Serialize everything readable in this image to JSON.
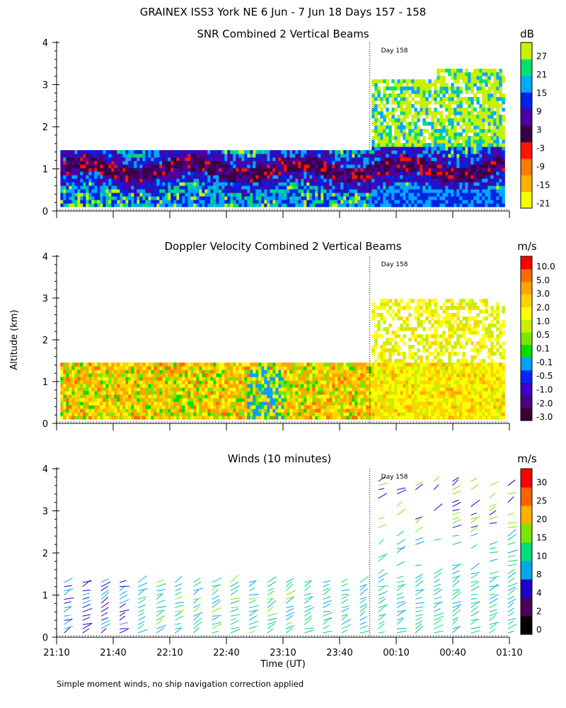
{
  "figure_title": "GRAINEX ISS3 York NE   6 Jun -  7 Jun 18 Days 157 - 158",
  "footnote": "Simple moment winds, no ship navigation correction applied",
  "shared": {
    "ylabel": "Altitude (km)",
    "xlabel": "Time (UT)",
    "x_ticks": [
      "21:10",
      "21:40",
      "22:10",
      "22:40",
      "23:10",
      "23:40",
      "00:10",
      "00:40",
      "01:10"
    ],
    "day_marker_label": "Day 158"
  },
  "chart_data": [
    {
      "type": "heatmap",
      "title": "SNR Combined 2 Vertical Beams",
      "ylim": [
        0,
        4
      ],
      "y_ticks": [
        "0",
        "1",
        "2",
        "3",
        "4"
      ],
      "colorbar_unit": "dB",
      "colorbar_labels": [
        "27",
        "21",
        "15",
        "9",
        "3",
        "-3",
        "-9",
        "-15",
        "-21"
      ],
      "colors": [
        "#f5ff00",
        "#ffb000",
        "#ff7a00",
        "#ff1400",
        "#3a0046",
        "#4c00a0",
        "#0022e6",
        "#00a8ff",
        "#00e070",
        "#c8f000"
      ],
      "description_bands": [
        {
          "from_time": "21:10",
          "to_time": "23:55",
          "bottom_km": 0.1,
          "top_km": 1.4
        },
        {
          "from_time": "23:55",
          "to_time": "01:05",
          "bottom_km": 0.1,
          "top_km": 3.3
        }
      ]
    },
    {
      "type": "heatmap",
      "title": "Doppler Velocity Combined 2 Vertical Beams",
      "ylim": [
        0,
        4
      ],
      "y_ticks": [
        "0",
        "1",
        "2",
        "3",
        "4"
      ],
      "colorbar_unit": "m/s",
      "colorbar_labels": [
        "10.0",
        "5.0",
        "3.0",
        "2.0",
        "1.0",
        "0.5",
        "0.1",
        "-0.1",
        "-0.5",
        "-1.0",
        "-2.0",
        "-3.0"
      ],
      "colors": [
        "#3a0030",
        "#4b0082",
        "#3c00c8",
        "#0028f0",
        "#00a0ff",
        "#00dc00",
        "#78e600",
        "#c8f000",
        "#ffff00",
        "#ffd200",
        "#ffa500",
        "#ff6a00",
        "#ff0000"
      ]
    },
    {
      "type": "wind_barbs",
      "title": "Winds (10 minutes)",
      "ylim": [
        0,
        4
      ],
      "y_ticks": [
        "0",
        "1",
        "2",
        "3",
        "4"
      ],
      "colorbar_unit": "m/s",
      "colorbar_labels": [
        "30",
        "25",
        "20",
        "15",
        "10",
        "8",
        "4",
        "2",
        "0"
      ],
      "colors": [
        "#000000",
        "#4b005a",
        "#1e00c8",
        "#00a8e6",
        "#00dc78",
        "#7ae600",
        "#ffb000",
        "#ff6000",
        "#ff0000"
      ]
    }
  ]
}
